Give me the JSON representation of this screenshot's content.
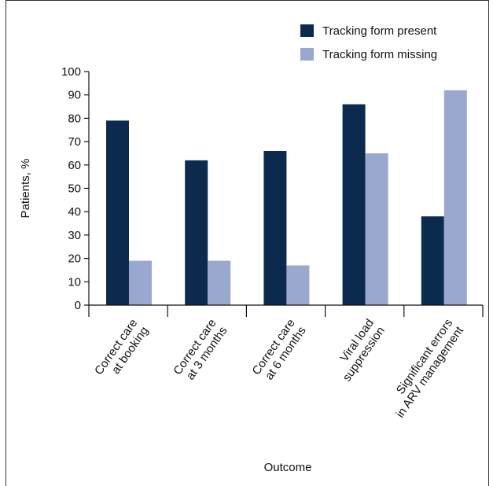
{
  "chart_data": {
    "type": "bar",
    "categories": [
      [
        "Correct care",
        "at booking"
      ],
      [
        "Correct care",
        "at 3 months"
      ],
      [
        "Correct care",
        "at 6 months"
      ],
      [
        "Viral load",
        "suppression"
      ],
      [
        "Significant errors",
        "in ARV management"
      ]
    ],
    "series": [
      {
        "name": "Tracking form present",
        "color": "#0c2a4e",
        "values": [
          79,
          62,
          66,
          86,
          38
        ]
      },
      {
        "name": "Tracking form missing",
        "color": "#9aa8cf",
        "values": [
          19,
          19,
          17,
          65,
          92
        ]
      }
    ],
    "xlabel": "Outcome",
    "ylabel": "Patients, %",
    "ylim": [
      0,
      100
    ],
    "yticks": [
      0,
      10,
      20,
      30,
      40,
      50,
      60,
      70,
      80,
      90,
      100
    ],
    "legend_position": "top-right",
    "grid": false
  }
}
